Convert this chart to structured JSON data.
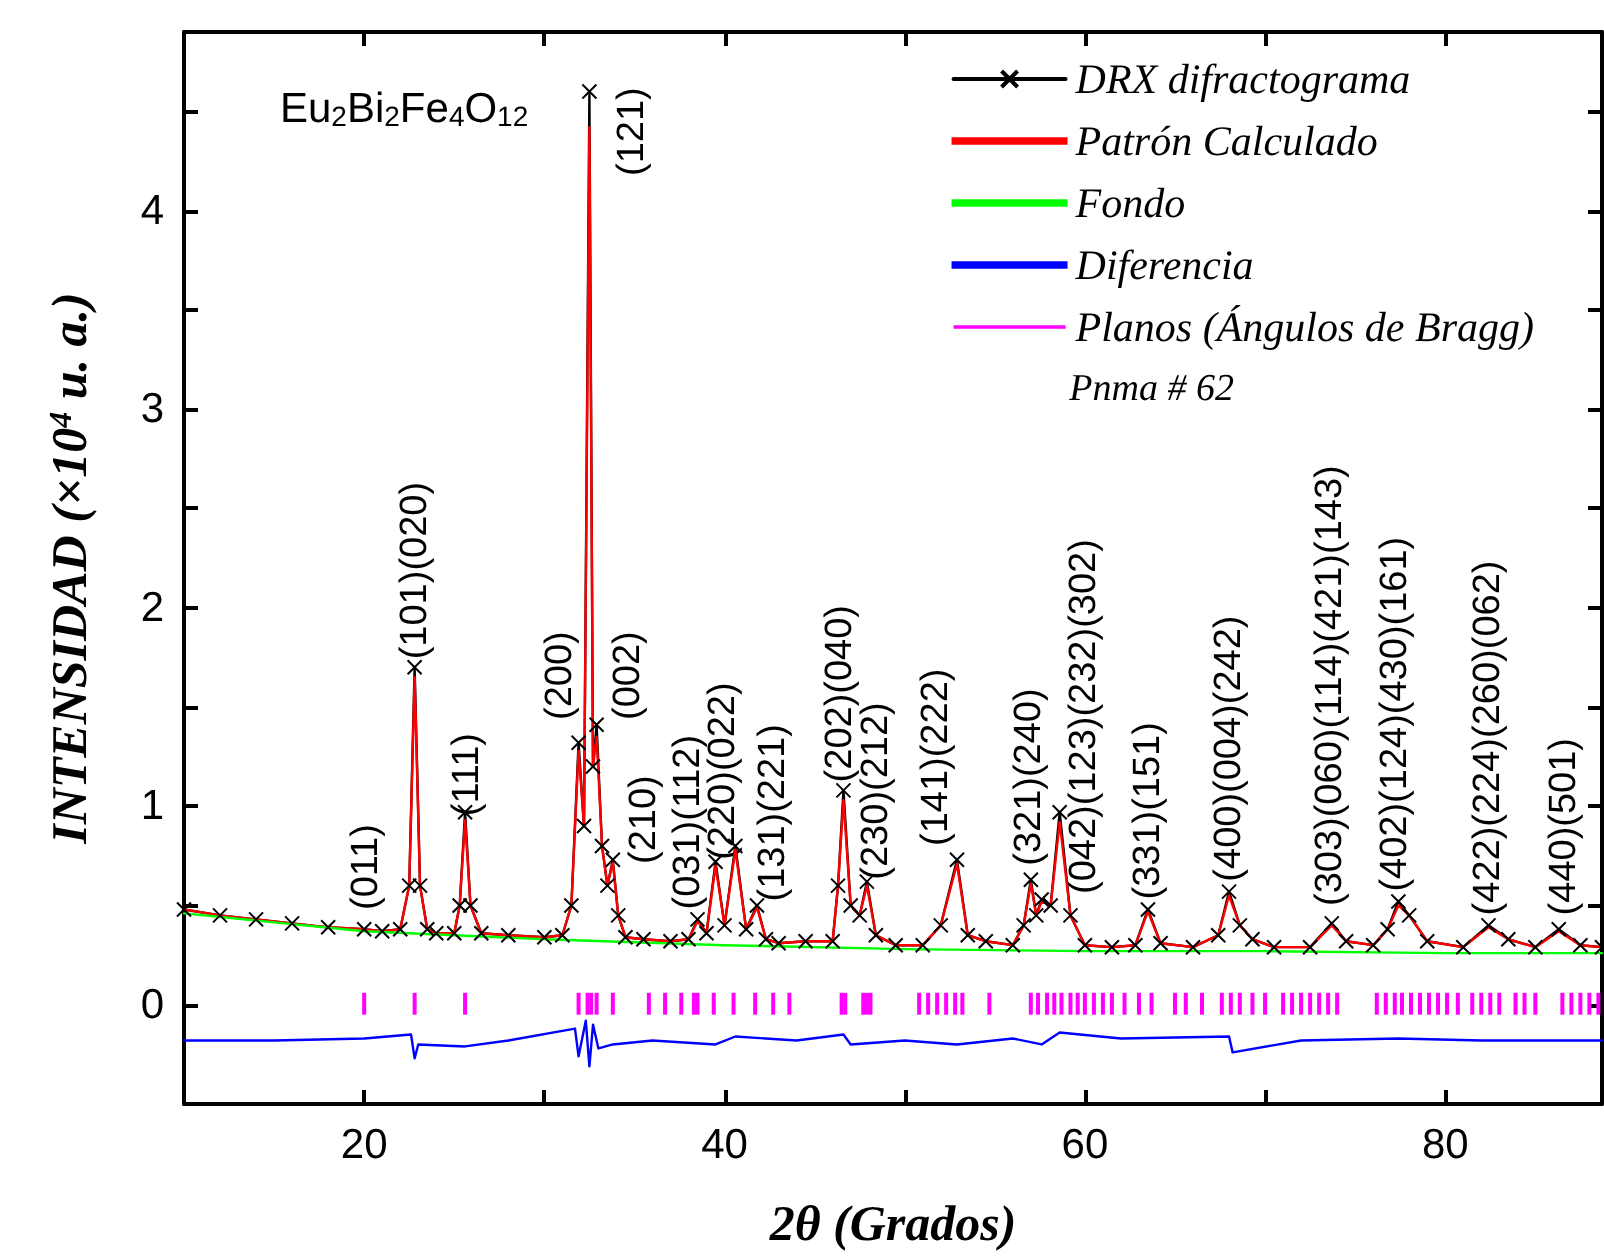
{
  "chart_data": {
    "type": "line",
    "xlabel": "2θ (Grados)",
    "ylabel": "INTENSIDAD (×10$^{4}$ u. a.)",
    "xlim": [
      10,
      88.7
    ],
    "ylim": [
      -0.5,
      4.9
    ],
    "xticks": [
      20,
      {
        "value": 30,
        "label": null
      },
      40,
      {
        "value": 50,
        "label": null
      },
      60,
      {
        "value": 70,
        "label": null
      },
      80
    ],
    "yticks": [
      0,
      {
        "value": 0.5,
        "label": null
      },
      1,
      {
        "value": 1.5,
        "label": null
      },
      2,
      {
        "value": 2.5,
        "label": null
      },
      3,
      {
        "value": 3.5,
        "label": null
      },
      4,
      {
        "value": 4.5,
        "label": null
      }
    ],
    "legend": "top right",
    "x": [
      10,
      12,
      14,
      16,
      18,
      20,
      21,
      22,
      22.5,
      22.8,
      23.1,
      23.5,
      24,
      25,
      25.3,
      25.6,
      25.9,
      26.5,
      28,
      30,
      31,
      31.5,
      31.9,
      32.2,
      32.5,
      32.7,
      32.9,
      33.2,
      33.5,
      33.8,
      34.1,
      34.5,
      35.5,
      37,
      38,
      38.5,
      39,
      39.5,
      40,
      40.6,
      41.2,
      41.8,
      42.3,
      43,
      44.5,
      46,
      46.3,
      46.6,
      47,
      47.5,
      47.9,
      48.4,
      49.5,
      51,
      52,
      52.9,
      53.5,
      54.5,
      56,
      56.6,
      57,
      57.3,
      57.6,
      58.1,
      58.6,
      59.2,
      60,
      61.5,
      62.8,
      63.5,
      64.2,
      66,
      67.4,
      68,
      68.6,
      69.3,
      70.5,
      72.5,
      73.7,
      74.5,
      76,
      76.8,
      77.4,
      78,
      79,
      81,
      82.4,
      83.5,
      85,
      86.3,
      87.5,
      88.7
    ],
    "series": [
      {
        "name": "DRX difractograma",
        "color": "#000000",
        "marker": "cross",
        "values": [
          0.48,
          0.45,
          0.43,
          0.41,
          0.39,
          0.38,
          0.37,
          0.38,
          0.6,
          1.7,
          0.6,
          0.38,
          0.36,
          0.36,
          0.5,
          0.97,
          0.5,
          0.36,
          0.35,
          0.34,
          0.35,
          0.5,
          1.32,
          0.9,
          4.6,
          1.2,
          1.41,
          0.8,
          0.6,
          0.73,
          0.45,
          0.34,
          0.33,
          0.32,
          0.33,
          0.43,
          0.36,
          0.72,
          0.4,
          0.8,
          0.38,
          0.5,
          0.33,
          0.31,
          0.32,
          0.32,
          0.6,
          1.08,
          0.5,
          0.45,
          0.62,
          0.35,
          0.3,
          0.3,
          0.4,
          0.73,
          0.35,
          0.32,
          0.3,
          0.4,
          0.63,
          0.45,
          0.53,
          0.5,
          0.97,
          0.45,
          0.3,
          0.29,
          0.3,
          0.48,
          0.31,
          0.29,
          0.35,
          0.57,
          0.4,
          0.33,
          0.29,
          0.29,
          0.41,
          0.32,
          0.3,
          0.38,
          0.52,
          0.45,
          0.32,
          0.29,
          0.4,
          0.33,
          0.29,
          0.38,
          0.3,
          0.29
        ]
      },
      {
        "name": "Patrón Calculado",
        "color": "#ff0000",
        "marker": "none",
        "values": [
          0.48,
          0.45,
          0.43,
          0.41,
          0.39,
          0.38,
          0.37,
          0.38,
          0.6,
          1.65,
          0.6,
          0.38,
          0.36,
          0.36,
          0.5,
          0.93,
          0.5,
          0.36,
          0.35,
          0.34,
          0.35,
          0.5,
          1.28,
          0.9,
          4.42,
          1.2,
          1.35,
          0.8,
          0.6,
          0.72,
          0.45,
          0.34,
          0.33,
          0.32,
          0.33,
          0.42,
          0.36,
          0.7,
          0.4,
          0.78,
          0.38,
          0.49,
          0.33,
          0.31,
          0.32,
          0.32,
          0.6,
          1.03,
          0.5,
          0.45,
          0.6,
          0.35,
          0.3,
          0.3,
          0.4,
          0.71,
          0.35,
          0.32,
          0.3,
          0.4,
          0.61,
          0.45,
          0.52,
          0.5,
          0.92,
          0.45,
          0.3,
          0.29,
          0.3,
          0.47,
          0.31,
          0.29,
          0.35,
          0.55,
          0.4,
          0.33,
          0.29,
          0.29,
          0.4,
          0.32,
          0.3,
          0.38,
          0.5,
          0.45,
          0.32,
          0.29,
          0.39,
          0.33,
          0.29,
          0.37,
          0.3,
          0.29
        ]
      },
      {
        "name": "Fondo",
        "color": "#00ff00",
        "marker": "none",
        "x": [
          10,
          20,
          30,
          40,
          50,
          60,
          70,
          80,
          88.7
        ],
        "values": [
          0.46,
          0.37,
          0.33,
          0.3,
          0.28,
          0.27,
          0.27,
          0.26,
          0.26
        ]
      },
      {
        "name": "Diferencia",
        "color": "#0000ff",
        "marker": "none",
        "x": [
          10,
          15,
          20,
          22.6,
          22.8,
          23.0,
          25.6,
          28,
          31.7,
          31.9,
          32.3,
          32.5,
          32.7,
          33,
          33.8,
          36,
          39.5,
          40.6,
          44,
          46.6,
          47,
          50,
          52.9,
          56,
          57.6,
          58.6,
          62,
          68,
          68.2,
          72,
          77.4,
          82,
          88.7
        ],
        "values": [
          -0.18,
          -0.18,
          -0.17,
          -0.15,
          -0.27,
          -0.2,
          -0.21,
          -0.18,
          -0.12,
          -0.26,
          -0.08,
          -0.31,
          -0.1,
          -0.22,
          -0.2,
          -0.18,
          -0.2,
          -0.16,
          -0.18,
          -0.15,
          -0.2,
          -0.18,
          -0.2,
          -0.17,
          -0.2,
          -0.14,
          -0.17,
          -0.16,
          -0.24,
          -0.18,
          -0.17,
          -0.18,
          -0.18
        ]
      },
      {
        "name": "Planos (Ángulos de Bragg)",
        "color": "#ff00ff",
        "type": "bar",
        "x": [
          20.0,
          22.8,
          25.6,
          31.9,
          32.4,
          32.6,
          32.9,
          33.8,
          35.8,
          36.7,
          37.6,
          38.3,
          38.5,
          39.4,
          40.5,
          41.7,
          42.7,
          43.6,
          46.5,
          46.7,
          47.7,
          47.9,
          48.1,
          50.8,
          51.3,
          51.8,
          52.3,
          52.8,
          53.2,
          54.7,
          57.0,
          57.4,
          57.9,
          58.3,
          58.7,
          59.2,
          59.6,
          60.0,
          60.5,
          61.0,
          61.5,
          62.2,
          63.0,
          63.7,
          65.0,
          65.6,
          66.5,
          67.6,
          68.1,
          68.6,
          69.3,
          70.0,
          71.0,
          71.5,
          72.0,
          72.5,
          73.0,
          73.5,
          74.0,
          76.2,
          76.7,
          77.2,
          77.6,
          78.1,
          78.6,
          79.1,
          79.6,
          80.1,
          80.7,
          81.5,
          82.0,
          82.5,
          83.0,
          83.9,
          84.4,
          85.0,
          86.5,
          87.0,
          87.5,
          88.0,
          88.5
        ],
        "base": [
          -0.05,
          -0.05,
          -0.05,
          -0.05,
          -0.05,
          -0.05,
          -0.05,
          -0.05,
          -0.05,
          -0.05,
          -0.05,
          -0.05,
          -0.05,
          -0.05,
          -0.05,
          -0.05,
          -0.05,
          -0.05,
          -0.05,
          -0.05,
          -0.05,
          -0.05,
          -0.05,
          -0.05,
          -0.05,
          -0.05,
          -0.05,
          -0.05,
          -0.05,
          -0.05,
          -0.05,
          -0.05,
          -0.05,
          -0.05,
          -0.05,
          -0.05,
          -0.05,
          -0.05,
          -0.05,
          -0.05,
          -0.05,
          -0.05,
          -0.05,
          -0.05,
          -0.05,
          -0.05,
          -0.05,
          -0.05,
          -0.05,
          -0.05,
          -0.05,
          -0.05,
          -0.05,
          -0.05,
          -0.05,
          -0.05,
          -0.05,
          -0.05,
          -0.05,
          -0.05,
          -0.05,
          -0.05,
          -0.05,
          -0.05,
          -0.05,
          -0.05,
          -0.05,
          -0.05,
          -0.05,
          -0.05,
          -0.05,
          -0.05,
          -0.05,
          -0.05,
          -0.05,
          -0.05,
          -0.05,
          -0.05,
          -0.05,
          -0.05,
          -0.05
        ],
        "values": [
          0.11,
          0.11,
          0.11,
          0.11,
          0.11,
          0.11,
          0.11,
          0.11,
          0.11,
          0.11,
          0.11,
          0.11,
          0.11,
          0.11,
          0.11,
          0.11,
          0.11,
          0.11,
          0.11,
          0.11,
          0.11,
          0.11,
          0.11,
          0.11,
          0.11,
          0.11,
          0.11,
          0.11,
          0.11,
          0.11,
          0.11,
          0.11,
          0.11,
          0.11,
          0.11,
          0.11,
          0.11,
          0.11,
          0.11,
          0.11,
          0.11,
          0.11,
          0.11,
          0.11,
          0.11,
          0.11,
          0.11,
          0.11,
          0.11,
          0.11,
          0.11,
          0.11,
          0.11,
          0.11,
          0.11,
          0.11,
          0.11,
          0.11,
          0.11,
          0.11,
          0.11,
          0.11,
          0.11,
          0.11,
          0.11,
          0.11,
          0.11,
          0.11,
          0.11,
          0.11,
          0.11,
          0.11,
          0.11,
          0.11,
          0.11,
          0.11,
          0.11,
          0.11,
          0.11,
          0.11,
          0.11
        ]
      }
    ],
    "annotations": [
      "Eu$_{2}$Bi$_{2}$Fe$_{4}$O$_{12}$",
      "Pnma # 62",
      "(011)",
      {
        "text": "(101)(020)",
        "x": 22.8,
        "y": 1.74
      },
      {
        "text": "(111)",
        "x": 25.7,
        "y": 0.95
      },
      "(200)",
      "(121)",
      "(002)",
      "(210)",
      {
        "text": "(031)(112)",
        "x": 38.0,
        "y": 0.48
      },
      {
        "text": "(220)(022)",
        "x": 39.9,
        "y": 0.73
      },
      {
        "text": "(131)(221)",
        "x": 42.7,
        "y": 0.52
      },
      {
        "text": "(202)(040)",
        "x": 46.4,
        "y": 1.12
      },
      {
        "text": "(230)(212)",
        "x": 48.4,
        "y": 0.63
      },
      "(141)(222)",
      {
        "text": "(321)(240)",
        "x": 56.9,
        "y": 0.7
      },
      "(042)(123)(232)(302)",
      {
        "text": "(331)(151)",
        "x": 63.5,
        "y": 0.53
      },
      {
        "text": "(400)(004)(242)",
        "x": 68.0,
        "y": 0.62
      },
      "(303)(060)(114)(421)(143)",
      {
        "text": "(402)(124)(430)(161)",
        "x": 77.2,
        "y": 0.57
      },
      {
        "text": "(422)(224)(260)(062)",
        "x": 82.4,
        "y": 0.45
      },
      {
        "text": "(440)(501)",
        "x": 86.6,
        "y": 0.45
      }
    ]
  }
}
